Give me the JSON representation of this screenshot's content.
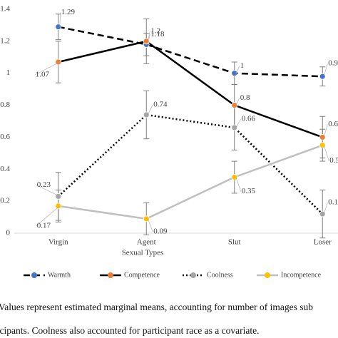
{
  "chart_data": {
    "type": "line",
    "x_label": "Sexual Types",
    "categories": [
      "Virgin",
      "Agent",
      "Slut",
      "Loser"
    ],
    "series": [
      {
        "name": "Warmth",
        "color": "#4472c4",
        "line_color": "#000000",
        "dash": "dashed",
        "values": [
          1.29,
          1.18,
          1,
          0.98
        ],
        "errors": [
          0.08,
          0.07,
          0.07,
          0.06
        ]
      },
      {
        "name": "Competence",
        "color": "#ed7d31",
        "line_color": "#000000",
        "dash": "solid",
        "values": [
          1.07,
          1.2,
          0.8,
          0.6
        ],
        "errors": [
          0.13,
          0.14,
          0.13,
          0.13
        ]
      },
      {
        "name": "Coolness",
        "color": "#a5a5a5",
        "line_color": "#000000",
        "dash": "dotted",
        "values": [
          0.23,
          0.74,
          0.66,
          0.12
        ],
        "errors": [
          0.15,
          0.15,
          0.14,
          0.15
        ]
      },
      {
        "name": "Incompetence",
        "color": "#ffc000",
        "line_color": "#bfbfbf",
        "dash": "solid",
        "values": [
          0.17,
          0.09,
          0.35,
          0.55
        ],
        "errors": [
          0.1,
          0.1,
          0.1,
          0.1
        ]
      }
    ],
    "ylim": [
      0,
      1.4
    ],
    "yticks": [
      0,
      0.2,
      0.4,
      0.6,
      0.8,
      1,
      1.2,
      1.4
    ],
    "legend": "bottom",
    "caption": [
      "Values represent estimated marginal means, accounting for number of images sub",
      "ticipants. Coolness also accounted for participant race as a covariate."
    ]
  }
}
